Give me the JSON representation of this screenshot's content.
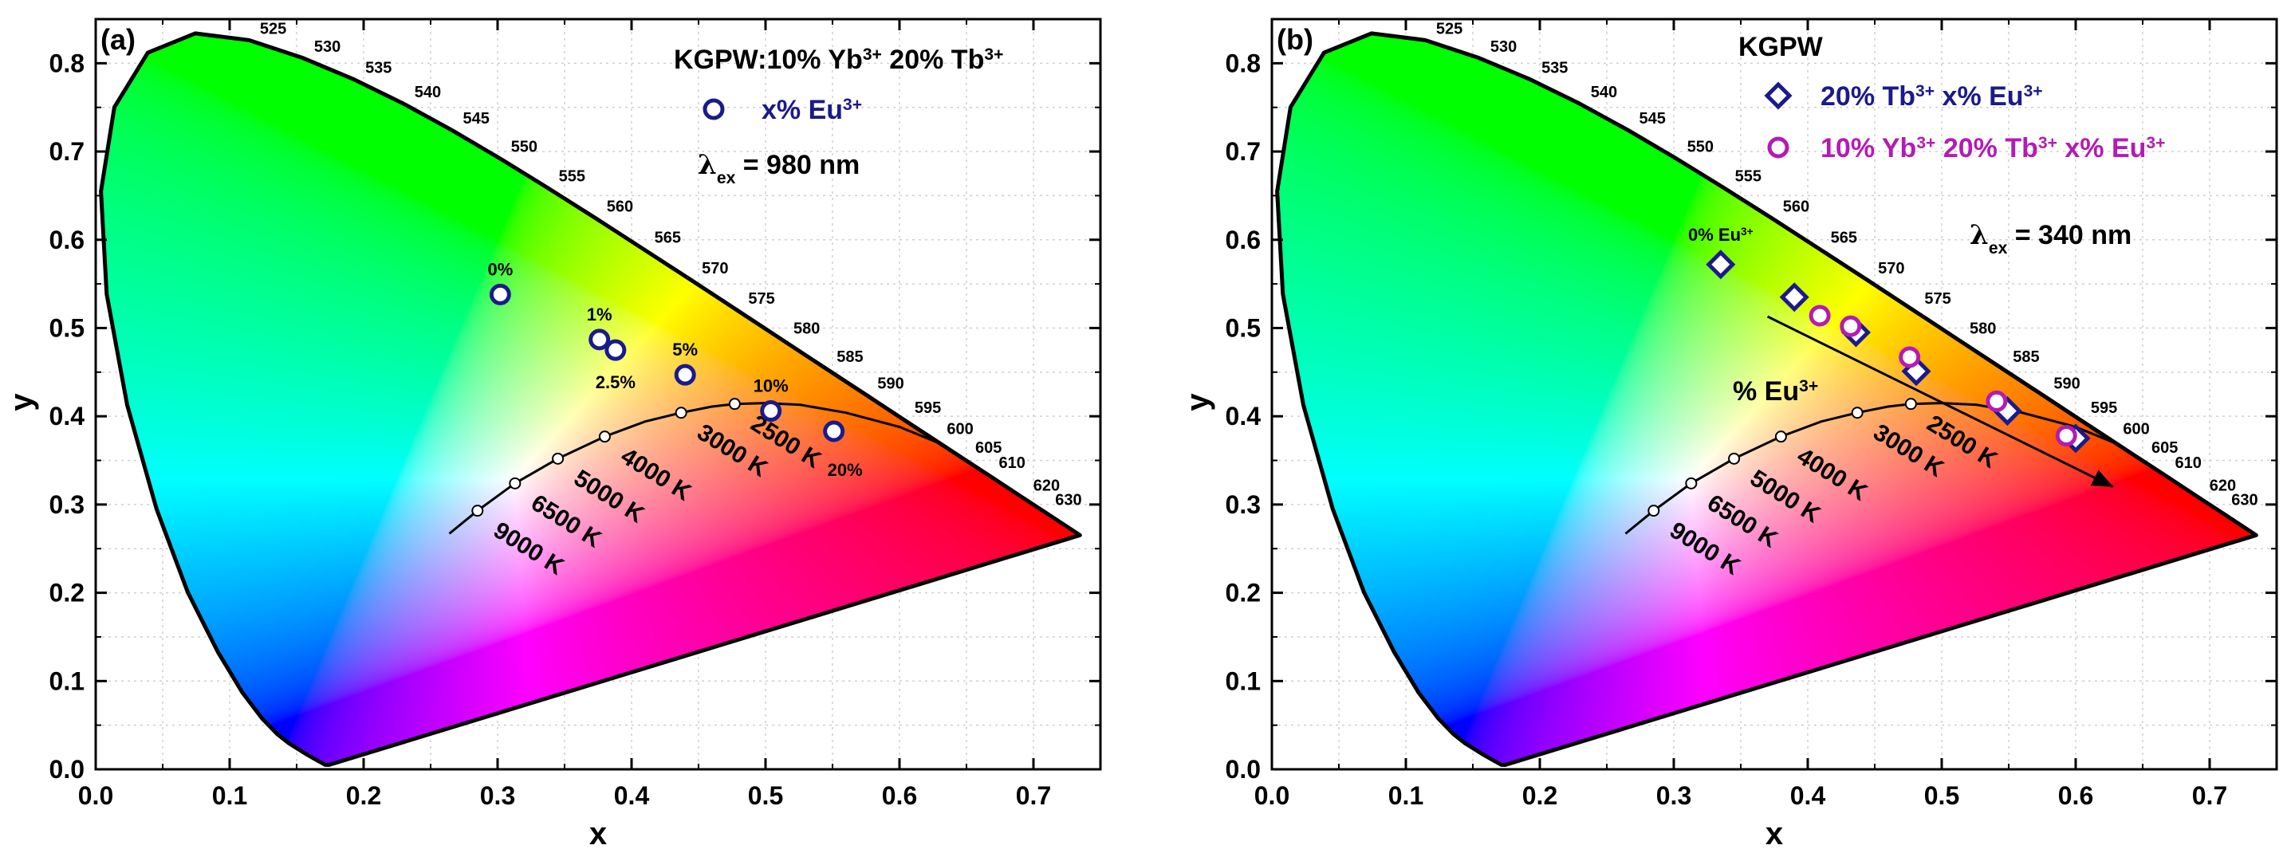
{
  "chart_data": [
    {
      "type": "scatter",
      "panel_label": "(a)",
      "title_parts": [
        "KGPW:10% Yb",
        "3+",
        " 20% Tb",
        "3+"
      ],
      "xlabel": "x",
      "ylabel": "y",
      "xlim": [
        0.0,
        0.75
      ],
      "ylim": [
        0.0,
        0.85
      ],
      "xticks": [
        "0.0",
        "0.1",
        "0.2",
        "0.3",
        "0.4",
        "0.5",
        "0.6",
        "0.7"
      ],
      "yticks": [
        "0.0",
        "0.1",
        "0.2",
        "0.3",
        "0.4",
        "0.5",
        "0.6",
        "0.7",
        "0.8"
      ],
      "excitation": {
        "symbol": "λ",
        "sub": "ex",
        "text": " = 980 nm"
      },
      "legend_position": "top-right",
      "series": [
        {
          "name_parts": [
            "x% Eu",
            "3+"
          ],
          "marker": "circle",
          "color": "#1a1a8c",
          "points": [
            {
              "x": 0.302,
              "y": 0.538,
              "label": "0%"
            },
            {
              "x": 0.376,
              "y": 0.487,
              "label": "1%"
            },
            {
              "x": 0.388,
              "y": 0.475,
              "label": "2.5%"
            },
            {
              "x": 0.44,
              "y": 0.447,
              "label": "5%"
            },
            {
              "x": 0.504,
              "y": 0.406,
              "label": "10%"
            },
            {
              "x": 0.551,
              "y": 0.383,
              "label": "20%"
            }
          ]
        }
      ],
      "planckian_points": [
        {
          "x": 0.285,
          "y": 0.293,
          "label": "9000 K"
        },
        {
          "x": 0.313,
          "y": 0.324,
          "label": "6500 K"
        },
        {
          "x": 0.345,
          "y": 0.352,
          "label": "5000 K"
        },
        {
          "x": 0.38,
          "y": 0.377,
          "label": "4000 K"
        },
        {
          "x": 0.437,
          "y": 0.404,
          "label": "3000 K"
        },
        {
          "x": 0.477,
          "y": 0.414,
          "label": "2500 K"
        }
      ],
      "wavelength_labels": [
        "525",
        "530",
        "535",
        "540",
        "545",
        "550",
        "555",
        "560",
        "565",
        "570",
        "575",
        "580",
        "585",
        "590",
        "595",
        "600",
        "605",
        "610",
        "620",
        "630"
      ]
    },
    {
      "type": "scatter",
      "panel_label": "(b)",
      "title_parts": [
        "KGPW"
      ],
      "xlabel": "x",
      "ylabel": "y",
      "xlim": [
        0.0,
        0.75
      ],
      "ylim": [
        0.0,
        0.85
      ],
      "xticks": [
        "0.0",
        "0.1",
        "0.2",
        "0.3",
        "0.4",
        "0.5",
        "0.6",
        "0.7"
      ],
      "yticks": [
        "0.0",
        "0.1",
        "0.2",
        "0.3",
        "0.4",
        "0.5",
        "0.6",
        "0.7",
        "0.8"
      ],
      "excitation": {
        "symbol": "λ",
        "sub": "ex",
        "text": " = 340 nm"
      },
      "legend_position": "top-right",
      "start_label": "0% Eu",
      "start_label_sup": "3+",
      "arrow_label": "% Eu",
      "arrow_label_sup": "3+",
      "arrow": {
        "from": [
          0.37,
          0.513
        ],
        "to": [
          0.628,
          0.32
        ]
      },
      "series": [
        {
          "name_parts": [
            "20% Tb",
            "3+",
            " x% Eu",
            "3+"
          ],
          "marker": "diamond",
          "color": "#1a1a8c",
          "points": [
            {
              "x": 0.335,
              "y": 0.572
            },
            {
              "x": 0.39,
              "y": 0.535
            },
            {
              "x": 0.436,
              "y": 0.495
            },
            {
              "x": 0.481,
              "y": 0.451
            },
            {
              "x": 0.549,
              "y": 0.406
            },
            {
              "x": 0.6,
              "y": 0.375
            }
          ]
        },
        {
          "name_parts": [
            "10% Yb",
            "3+",
            " 20% Tb",
            "3+",
            " x% Eu",
            "3+"
          ],
          "marker": "circle",
          "color": "#b41bb4",
          "points": [
            {
              "x": 0.409,
              "y": 0.514
            },
            {
              "x": 0.432,
              "y": 0.502
            },
            {
              "x": 0.476,
              "y": 0.467
            },
            {
              "x": 0.541,
              "y": 0.417
            },
            {
              "x": 0.593,
              "y": 0.378
            }
          ]
        }
      ],
      "planckian_points": [
        {
          "x": 0.285,
          "y": 0.293,
          "label": "9000 K"
        },
        {
          "x": 0.313,
          "y": 0.324,
          "label": "6500 K"
        },
        {
          "x": 0.345,
          "y": 0.352,
          "label": "5000 K"
        },
        {
          "x": 0.38,
          "y": 0.377,
          "label": "4000 K"
        },
        {
          "x": 0.437,
          "y": 0.404,
          "label": "3000 K"
        },
        {
          "x": 0.477,
          "y": 0.414,
          "label": "2500 K"
        }
      ],
      "wavelength_labels": [
        "525",
        "530",
        "535",
        "540",
        "545",
        "550",
        "555",
        "560",
        "565",
        "570",
        "575",
        "580",
        "585",
        "590",
        "595",
        "600",
        "605",
        "610",
        "620",
        "630"
      ]
    }
  ]
}
